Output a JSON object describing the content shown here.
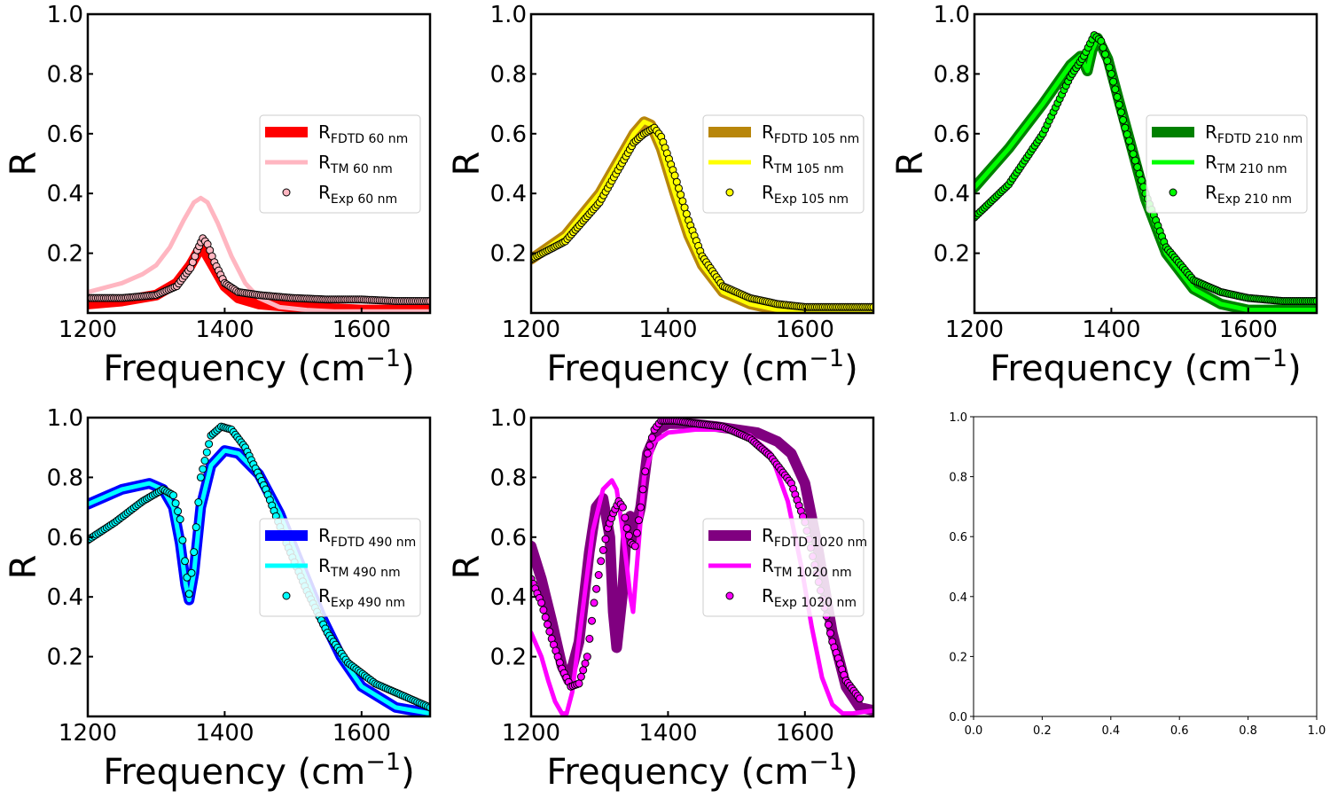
{
  "chart_data": [
    {
      "type": "line",
      "colors": {
        "fdtd": "#ff0000",
        "tm": "#ffb6c1",
        "exp": "#ffb6c1"
      },
      "legend_placement": "center-right",
      "series": [
        {
          "name": "FDTD 60 nm",
          "kind": "band",
          "x": [
            1200,
            1250,
            1300,
            1330,
            1350,
            1360,
            1365,
            1370,
            1380,
            1400,
            1420,
            1450,
            1500,
            1550,
            1600,
            1650,
            1700
          ],
          "values": [
            0.03,
            0.04,
            0.06,
            0.1,
            0.16,
            0.2,
            0.22,
            0.21,
            0.17,
            0.09,
            0.05,
            0.03,
            0.02,
            0.015,
            0.01,
            0.01,
            0.01
          ]
        },
        {
          "name": "TM 60 nm",
          "kind": "line",
          "x": [
            1200,
            1250,
            1280,
            1300,
            1320,
            1340,
            1355,
            1365,
            1375,
            1390,
            1410,
            1430,
            1450,
            1480,
            1520,
            1560,
            1600,
            1650,
            1700
          ],
          "values": [
            0.07,
            0.1,
            0.13,
            0.16,
            0.22,
            0.31,
            0.37,
            0.385,
            0.37,
            0.3,
            0.19,
            0.1,
            0.05,
            0.02,
            0.01,
            0.005,
            0.005,
            0.005,
            0.005
          ]
        },
        {
          "name": "Exp 60 nm",
          "kind": "scatter",
          "x": [
            1200,
            1250,
            1300,
            1330,
            1350,
            1360,
            1368,
            1375,
            1385,
            1400,
            1420,
            1450,
            1500,
            1550,
            1600,
            1650,
            1700
          ],
          "values": [
            0.05,
            0.05,
            0.06,
            0.09,
            0.15,
            0.21,
            0.25,
            0.23,
            0.17,
            0.1,
            0.07,
            0.06,
            0.05,
            0.045,
            0.045,
            0.04,
            0.04
          ]
        }
      ],
      "legend_labels": [
        {
          "main": "R",
          "sub": "FDTD 60 nm"
        },
        {
          "main": "R",
          "sub": "TM 60 nm"
        },
        {
          "main": "R",
          "sub": "Exp 60 nm"
        }
      ],
      "xlabel": "Frequency (cm",
      "xlabel_sup": "−1",
      "xlabel_close": ")",
      "ylabel": "R",
      "xlim": [
        1200,
        1700
      ],
      "ylim": [
        0,
        1.0
      ],
      "xticks": [
        "1200",
        "1400",
        "1600"
      ],
      "yticks": [
        "0.2",
        "0.4",
        "0.6",
        "0.8",
        "1.0"
      ]
    },
    {
      "type": "line",
      "colors": {
        "fdtd": "#b8860b",
        "tm": "#ffff00",
        "exp": "#ffff00"
      },
      "legend_placement": "center-right",
      "series": [
        {
          "name": "FDTD 105 nm",
          "kind": "band",
          "x": [
            1200,
            1250,
            1300,
            1330,
            1350,
            1365,
            1375,
            1390,
            1410,
            1430,
            1450,
            1480,
            1520,
            1560,
            1600,
            1650,
            1700
          ],
          "values": [
            0.18,
            0.26,
            0.4,
            0.52,
            0.6,
            0.64,
            0.63,
            0.55,
            0.4,
            0.26,
            0.16,
            0.07,
            0.03,
            0.01,
            0.005,
            0.005,
            0.005
          ]
        },
        {
          "name": "TM 105 nm",
          "kind": "line",
          "x": [
            1200,
            1250,
            1300,
            1330,
            1350,
            1365,
            1375,
            1390,
            1410,
            1430,
            1450,
            1480,
            1520,
            1560,
            1600,
            1650,
            1700
          ],
          "values": [
            0.18,
            0.26,
            0.4,
            0.52,
            0.6,
            0.64,
            0.63,
            0.55,
            0.4,
            0.26,
            0.16,
            0.07,
            0.03,
            0.01,
            0.005,
            0.005,
            0.005
          ]
        },
        {
          "name": "Exp 105 nm",
          "kind": "scatter",
          "x": [
            1200,
            1250,
            1300,
            1330,
            1350,
            1365,
            1380,
            1390,
            1410,
            1430,
            1450,
            1480,
            1520,
            1560,
            1600,
            1650,
            1700
          ],
          "values": [
            0.18,
            0.24,
            0.37,
            0.49,
            0.57,
            0.6,
            0.62,
            0.59,
            0.46,
            0.31,
            0.19,
            0.09,
            0.05,
            0.03,
            0.02,
            0.02,
            0.02
          ]
        }
      ],
      "legend_labels": [
        {
          "main": "R",
          "sub": "FDTD 105 nm"
        },
        {
          "main": "R",
          "sub": "TM 105 nm"
        },
        {
          "main": "R",
          "sub": "Exp 105 nm"
        }
      ],
      "xlabel": "Frequency (cm",
      "xlabel_sup": "−1",
      "xlabel_close": ")",
      "ylabel": "R",
      "xlim": [
        1200,
        1700
      ],
      "ylim": [
        0,
        1.0
      ],
      "xticks": [
        "1200",
        "1400",
        "1600"
      ],
      "yticks": [
        "0.2",
        "0.4",
        "0.6",
        "0.8",
        "1.0"
      ]
    },
    {
      "type": "line",
      "colors": {
        "fdtd": "#008000",
        "tm": "#00ff00",
        "exp": "#00ff00"
      },
      "legend_placement": "center-right",
      "series": [
        {
          "name": "FDTD 210 nm",
          "kind": "band",
          "x": [
            1200,
            1250,
            1300,
            1340,
            1355,
            1365,
            1372,
            1380,
            1395,
            1410,
            1430,
            1450,
            1480,
            1520,
            1560,
            1600,
            1650,
            1700
          ],
          "values": [
            0.42,
            0.55,
            0.7,
            0.83,
            0.86,
            0.81,
            0.88,
            0.92,
            0.85,
            0.72,
            0.55,
            0.38,
            0.2,
            0.08,
            0.03,
            0.01,
            0.01,
            0.01
          ]
        },
        {
          "name": "TM 210 nm",
          "kind": "line",
          "x": [
            1200,
            1250,
            1300,
            1340,
            1355,
            1365,
            1372,
            1380,
            1395,
            1410,
            1430,
            1450,
            1480,
            1520,
            1560,
            1600,
            1650,
            1700
          ],
          "values": [
            0.42,
            0.55,
            0.7,
            0.83,
            0.86,
            0.81,
            0.88,
            0.92,
            0.85,
            0.72,
            0.55,
            0.38,
            0.2,
            0.08,
            0.03,
            0.01,
            0.01,
            0.01
          ]
        },
        {
          "name": "Exp 210 nm",
          "kind": "scatter",
          "x": [
            1200,
            1250,
            1300,
            1340,
            1360,
            1375,
            1385,
            1400,
            1420,
            1450,
            1480,
            1520,
            1560,
            1600,
            1650,
            1700
          ],
          "values": [
            0.32,
            0.43,
            0.6,
            0.79,
            0.86,
            0.93,
            0.91,
            0.8,
            0.62,
            0.4,
            0.22,
            0.11,
            0.07,
            0.05,
            0.04,
            0.04
          ]
        }
      ],
      "legend_labels": [
        {
          "main": "R",
          "sub": "FDTD 210 nm"
        },
        {
          "main": "R",
          "sub": "TM 210 nm"
        },
        {
          "main": "R",
          "sub": "Exp 210 nm"
        }
      ],
      "xlabel": "Frequency (cm",
      "xlabel_sup": "−1",
      "xlabel_close": ")",
      "ylabel": "R",
      "xlim": [
        1200,
        1700
      ],
      "ylim": [
        0,
        1.0
      ],
      "xticks": [
        "1200",
        "1400",
        "1600"
      ],
      "yticks": [
        "0.2",
        "0.4",
        "0.6",
        "0.8",
        "1.0"
      ]
    },
    {
      "type": "line",
      "colors": {
        "fdtd": "#0000ff",
        "tm": "#00ffff",
        "exp": "#00ffff"
      },
      "legend_placement": "center-right",
      "series": [
        {
          "name": "FDTD 490 nm",
          "kind": "band",
          "x": [
            1200,
            1250,
            1290,
            1310,
            1325,
            1335,
            1343,
            1348,
            1355,
            1365,
            1380,
            1400,
            1420,
            1450,
            1480,
            1510,
            1540,
            1570,
            1600,
            1650,
            1700
          ],
          "values": [
            0.71,
            0.76,
            0.78,
            0.76,
            0.7,
            0.58,
            0.44,
            0.39,
            0.48,
            0.7,
            0.84,
            0.89,
            0.88,
            0.81,
            0.68,
            0.51,
            0.34,
            0.2,
            0.1,
            0.03,
            0.01
          ]
        },
        {
          "name": "TM 490 nm",
          "kind": "line",
          "x": [
            1200,
            1250,
            1290,
            1310,
            1325,
            1335,
            1343,
            1348,
            1355,
            1365,
            1380,
            1400,
            1420,
            1450,
            1480,
            1510,
            1540,
            1570,
            1600,
            1650,
            1700
          ],
          "values": [
            0.71,
            0.76,
            0.78,
            0.76,
            0.7,
            0.58,
            0.44,
            0.39,
            0.48,
            0.7,
            0.84,
            0.89,
            0.88,
            0.81,
            0.68,
            0.51,
            0.34,
            0.2,
            0.1,
            0.03,
            0.01
          ]
        },
        {
          "name": "Exp 490 nm",
          "kind": "scatter",
          "x": [
            1200,
            1240,
            1280,
            1310,
            1325,
            1335,
            1342,
            1348,
            1355,
            1365,
            1380,
            1395,
            1410,
            1430,
            1460,
            1490,
            1520,
            1550,
            1580,
            1620,
            1660,
            1700
          ],
          "values": [
            0.59,
            0.65,
            0.72,
            0.76,
            0.74,
            0.66,
            0.52,
            0.41,
            0.55,
            0.8,
            0.94,
            0.97,
            0.96,
            0.9,
            0.76,
            0.58,
            0.42,
            0.28,
            0.18,
            0.11,
            0.07,
            0.03
          ]
        }
      ],
      "legend_labels": [
        {
          "main": "R",
          "sub": "FDTD 490 nm"
        },
        {
          "main": "R",
          "sub": "TM 490 nm"
        },
        {
          "main": "R",
          "sub": "Exp 490 nm"
        }
      ],
      "xlabel": "Frequency (cm",
      "xlabel_sup": "−1",
      "xlabel_close": ")",
      "ylabel": "R",
      "xlim": [
        1200,
        1700
      ],
      "ylim": [
        0,
        1.0
      ],
      "xticks": [
        "1200",
        "1400",
        "1600"
      ],
      "yticks": [
        "0.2",
        "0.4",
        "0.6",
        "0.8",
        "1.0"
      ]
    },
    {
      "type": "line",
      "colors": {
        "fdtd": "#800080",
        "tm": "#ff00ff",
        "exp": "#ff00ff"
      },
      "legend_placement": "center-right",
      "series": [
        {
          "name": "FDTD 1020 nm",
          "kind": "band",
          "x": [
            1200,
            1215,
            1230,
            1245,
            1255,
            1270,
            1285,
            1295,
            1305,
            1315,
            1320,
            1325,
            1333,
            1340,
            1345,
            1350,
            1360,
            1370,
            1385,
            1400,
            1430,
            1470,
            1500,
            1530,
            1560,
            1580,
            1600,
            1620,
            1640,
            1660,
            1680,
            1700
          ],
          "values": [
            0.57,
            0.46,
            0.32,
            0.17,
            0.12,
            0.25,
            0.55,
            0.7,
            0.73,
            0.6,
            0.35,
            0.23,
            0.4,
            0.64,
            0.67,
            0.6,
            0.7,
            0.88,
            0.96,
            0.98,
            0.98,
            0.97,
            0.96,
            0.95,
            0.92,
            0.88,
            0.78,
            0.55,
            0.28,
            0.1,
            0.03,
            0.02
          ]
        },
        {
          "name": "TM 1020 nm",
          "kind": "line",
          "x": [
            1200,
            1215,
            1225,
            1235,
            1245,
            1252,
            1260,
            1275,
            1290,
            1305,
            1318,
            1325,
            1332,
            1340,
            1345,
            1349,
            1355,
            1365,
            1380,
            1400,
            1440,
            1480,
            1520,
            1550,
            1575,
            1595,
            1610,
            1625,
            1640,
            1655,
            1670,
            1700
          ],
          "values": [
            0.28,
            0.2,
            0.12,
            0.05,
            0.01,
            0.01,
            0.08,
            0.35,
            0.62,
            0.76,
            0.79,
            0.76,
            0.65,
            0.5,
            0.4,
            0.35,
            0.52,
            0.8,
            0.92,
            0.95,
            0.96,
            0.96,
            0.94,
            0.88,
            0.72,
            0.5,
            0.3,
            0.13,
            0.04,
            0.01,
            0.01,
            0.02
          ]
        },
        {
          "name": "Exp 1020 nm",
          "kind": "scatter",
          "x": [
            1200,
            1215,
            1230,
            1245,
            1258,
            1270,
            1282,
            1292,
            1302,
            1312,
            1320,
            1328,
            1334,
            1340,
            1346,
            1352,
            1360,
            1370,
            1380,
            1390,
            1410,
            1440,
            1480,
            1520,
            1550,
            1580,
            1600,
            1620,
            1640,
            1660,
            1680
          ],
          "values": [
            0.46,
            0.38,
            0.26,
            0.16,
            0.1,
            0.11,
            0.2,
            0.38,
            0.52,
            0.63,
            0.68,
            0.72,
            0.7,
            0.63,
            0.58,
            0.57,
            0.7,
            0.88,
            0.96,
            0.99,
            0.99,
            0.98,
            0.97,
            0.93,
            0.87,
            0.78,
            0.65,
            0.45,
            0.25,
            0.12,
            0.06
          ]
        }
      ],
      "legend_labels": [
        {
          "main": "R",
          "sub": "FDTD 1020 nm"
        },
        {
          "main": "R",
          "sub": "TM 1020 nm"
        },
        {
          "main": "R",
          "sub": "Exp 1020 nm"
        }
      ],
      "xlabel": "Frequency (cm",
      "xlabel_sup": "−1",
      "xlabel_close": ")",
      "ylabel": "R",
      "xlim": [
        1200,
        1700
      ],
      "ylim": [
        0,
        1.0
      ],
      "xticks": [
        "1200",
        "1400",
        "1600"
      ],
      "yticks": [
        "0.2",
        "0.4",
        "0.6",
        "0.8",
        "1.0"
      ]
    },
    {
      "type": "empty",
      "xlim": [
        0,
        1
      ],
      "ylim": [
        0,
        1
      ],
      "xticks": [
        "0.0",
        "0.2",
        "0.4",
        "0.6",
        "0.8",
        "1.0"
      ],
      "yticks": [
        "0.0",
        "0.2",
        "0.4",
        "0.6",
        "0.8",
        "1.0"
      ]
    }
  ]
}
